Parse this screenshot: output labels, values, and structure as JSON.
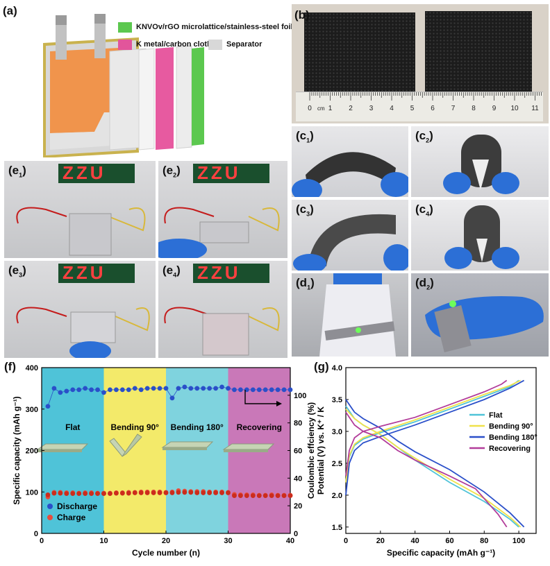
{
  "panels": {
    "a": "(a)",
    "b": "(b)",
    "f": "(f)",
    "g": "(g)",
    "c1": "c",
    "c2": "c",
    "c3": "c",
    "c4": "c",
    "d1": "d",
    "d2": "d",
    "e1": "e",
    "e2": "e",
    "e3": "e",
    "e4": "e",
    "sub1": "1",
    "sub2": "2",
    "sub3": "3",
    "sub4": "4"
  },
  "legend_a": {
    "cathode": "KNVOv/rGO microlattice/stainless-steel foil",
    "anode": "K metal/carbon cloth",
    "separator": "Separator",
    "colors": {
      "cathode": "#5cc84f",
      "anode": "#e2559b",
      "separator": "#d8d8d8"
    }
  },
  "ruler": {
    "unit": "cm",
    "ticks": [
      "0",
      "1",
      "2",
      "3",
      "4",
      "5",
      "6",
      "7",
      "8",
      "9",
      "10",
      "11"
    ]
  },
  "led_text": "ZZU",
  "chart_data": [
    {
      "type": "scatter",
      "id": "f",
      "xlabel": "Cycle number (n)",
      "ylabel": "Specific capacity (mAh g⁻¹)",
      "y2label": "Coulombic effciency (%)",
      "xlim": [
        0,
        40
      ],
      "ylim": [
        0,
        400
      ],
      "y2lim": [
        0,
        120
      ],
      "xticks": [
        "0",
        "10",
        "20",
        "30",
        "40"
      ],
      "yticks": [
        "0",
        "100",
        "200",
        "300",
        "400"
      ],
      "y2ticks": [
        "0",
        "20",
        "40",
        "60",
        "80",
        "100"
      ],
      "regions": [
        {
          "label": "Flat",
          "from": 0,
          "to": 10,
          "color": "#4fc3d8"
        },
        {
          "label": "Bending 90°",
          "from": 10,
          "to": 20,
          "color": "#f3ea6a"
        },
        {
          "label": "Bending 180°",
          "from": 20,
          "to": 30,
          "color": "#7fd3de"
        },
        {
          "label": "Recovering",
          "from": 30,
          "to": 40,
          "color": "#c978b8"
        }
      ],
      "legend": [
        "Discharge",
        "Charge"
      ],
      "series": [
        {
          "name": "Discharge",
          "axis": "left",
          "color": "#e74c3c",
          "x": [
            1,
            2,
            3,
            4,
            5,
            6,
            7,
            8,
            9,
            10,
            11,
            12,
            13,
            14,
            15,
            16,
            17,
            18,
            19,
            20,
            21,
            22,
            23,
            24,
            25,
            26,
            27,
            28,
            29,
            30,
            31,
            32,
            33,
            34,
            35,
            36,
            37,
            38,
            39,
            40
          ],
          "values": [
            88,
            99,
            99,
            98,
            98,
            97,
            98,
            98,
            97,
            97,
            97,
            98,
            98,
            99,
            99,
            100,
            100,
            100,
            100,
            99,
            100,
            103,
            102,
            101,
            101,
            101,
            100,
            100,
            100,
            99,
            94,
            93,
            93,
            93,
            92,
            92,
            93,
            92,
            92,
            92
          ]
        },
        {
          "name": "Charge",
          "axis": "left",
          "color": "#cc2c1c",
          "x": [
            1,
            2,
            3,
            4,
            5,
            6,
            7,
            8,
            9,
            10,
            11,
            12,
            13,
            14,
            15,
            16,
            17,
            18,
            19,
            20,
            21,
            22,
            23,
            24,
            25,
            26,
            27,
            28,
            29,
            30,
            31,
            32,
            33,
            34,
            35,
            36,
            37,
            38,
            39,
            40
          ],
          "values": [
            93,
            97,
            97,
            96,
            96,
            96,
            96,
            96,
            96,
            96,
            96,
            97,
            97,
            97,
            98,
            98,
            98,
            98,
            98,
            98,
            98,
            99,
            99,
            99,
            98,
            98,
            98,
            98,
            98,
            98,
            91,
            91,
            91,
            91,
            91,
            91,
            91,
            91,
            91,
            91
          ]
        },
        {
          "name": "Coulombic",
          "axis": "right",
          "color": "#2a4fc9",
          "x": [
            1,
            2,
            3,
            4,
            5,
            6,
            7,
            8,
            9,
            10,
            11,
            12,
            13,
            14,
            15,
            16,
            17,
            18,
            19,
            20,
            21,
            22,
            23,
            24,
            25,
            26,
            27,
            28,
            29,
            30,
            31,
            32,
            33,
            34,
            35,
            36,
            37,
            38,
            39,
            40
          ],
          "values": [
            92,
            105,
            102,
            103,
            104,
            104,
            105,
            104,
            104,
            102,
            104,
            104,
            104,
            104,
            105,
            104,
            105,
            105,
            105,
            105,
            98,
            105,
            106,
            105,
            105,
            105,
            105,
            105,
            106,
            105,
            104,
            104,
            104,
            104,
            104,
            104,
            104,
            104,
            104,
            104
          ]
        }
      ]
    },
    {
      "type": "line",
      "id": "g",
      "xlabel": "Specific capacity (mAh g⁻¹)",
      "ylabel": "Potential (V) vs. K⁺ / K",
      "xlim": [
        0,
        110
      ],
      "ylim": [
        1.4,
        4.0
      ],
      "xticks": [
        "0",
        "20",
        "40",
        "60",
        "80",
        "100"
      ],
      "yticks": [
        "1.5",
        "2.0",
        "2.5",
        "3.0",
        "3.5",
        "4.0"
      ],
      "legend": [
        "Flat",
        "Bending 90°",
        "Bending 180°",
        "Recovering"
      ],
      "series": [
        {
          "name": "Flat",
          "color": "#4fc3d8",
          "charge": {
            "x": [
              0,
              2,
              5,
              10,
              20,
              40,
              60,
              80,
              95,
              100
            ],
            "y": [
              2.2,
              2.6,
              2.78,
              2.88,
              2.98,
              3.15,
              3.35,
              3.55,
              3.7,
              3.8
            ]
          },
          "discharge": {
            "x": [
              0,
              5,
              10,
              20,
              30,
              40,
              60,
              80,
              95,
              100
            ],
            "y": [
              3.4,
              3.2,
              3.1,
              2.95,
              2.75,
              2.55,
              2.2,
              1.9,
              1.62,
              1.5
            ]
          }
        },
        {
          "name": "Bending 90°",
          "color": "#f0e14a",
          "charge": {
            "x": [
              0,
              2,
              5,
              10,
              20,
              40,
              60,
              80,
              95,
              101
            ],
            "y": [
              2.2,
              2.62,
              2.8,
              2.9,
              3.0,
              3.18,
              3.38,
              3.58,
              3.72,
              3.8
            ]
          },
          "discharge": {
            "x": [
              0,
              5,
              10,
              20,
              30,
              40,
              60,
              80,
              95,
              101
            ],
            "y": [
              3.35,
              3.2,
              3.1,
              2.95,
              2.75,
              2.58,
              2.25,
              1.95,
              1.65,
              1.5
            ]
          }
        },
        {
          "name": "Bending 180°",
          "color": "#2a4fc9",
          "charge": {
            "x": [
              0,
              2,
              5,
              10,
              20,
              40,
              60,
              80,
              95,
              103
            ],
            "y": [
              2.0,
              2.5,
              2.7,
              2.82,
              2.92,
              3.1,
              3.3,
              3.5,
              3.68,
              3.8
            ]
          },
          "discharge": {
            "x": [
              0,
              5,
              10,
              20,
              30,
              40,
              60,
              80,
              95,
              103
            ],
            "y": [
              3.5,
              3.3,
              3.2,
              3.05,
              2.85,
              2.68,
              2.4,
              2.05,
              1.72,
              1.5
            ]
          }
        },
        {
          "name": "Recovering",
          "color": "#b23c9a",
          "charge": {
            "x": [
              0,
              2,
              5,
              10,
              20,
              40,
              60,
              80,
              90,
              93
            ],
            "y": [
              2.3,
              2.7,
              2.9,
              3.0,
              3.08,
              3.22,
              3.42,
              3.62,
              3.74,
              3.8
            ]
          },
          "discharge": {
            "x": [
              0,
              5,
              10,
              20,
              30,
              40,
              60,
              75,
              88,
              93
            ],
            "y": [
              3.3,
              3.1,
              3.0,
              2.9,
              2.7,
              2.55,
              2.3,
              2.1,
              1.7,
              1.5
            ]
          }
        }
      ]
    }
  ]
}
